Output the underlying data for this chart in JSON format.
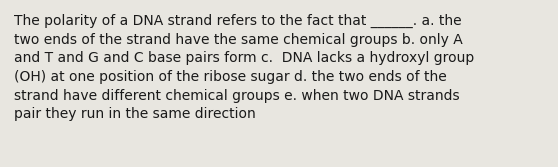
{
  "lines": [
    "The polarity of a DNA strand refers to the fact that ______. a. the",
    "two ends of the strand have the same chemical groups b. only A",
    "and T and G and C base pairs form c.  DNA lacks a hydroxyl group",
    "(OH) at one position of the ribose sugar d. the two ends of the",
    "strand have different chemical groups e. when two DNA strands",
    "pair they run in the same direction"
  ],
  "background_color": "#e8e6e0",
  "text_color": "#1a1a1a",
  "font_size": 10.0,
  "fig_width": 5.58,
  "fig_height": 1.67,
  "dpi": 100
}
